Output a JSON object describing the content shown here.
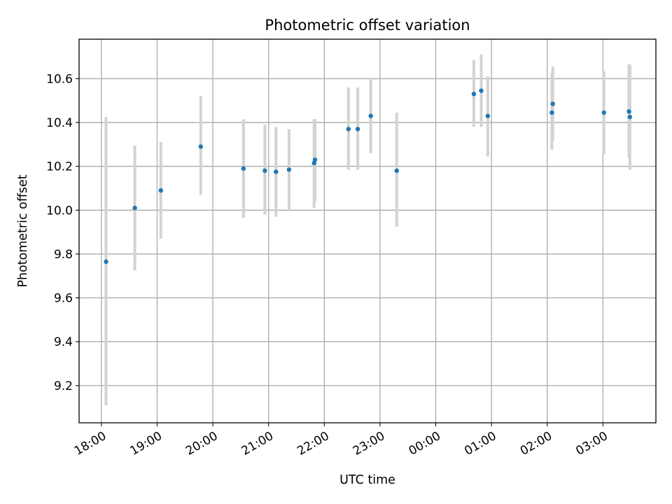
{
  "chart_data": {
    "type": "scatter",
    "title": "Photometric offset variation",
    "xlabel": "UTC time",
    "ylabel": "Photometric offset",
    "grid": true,
    "legend": "none",
    "x_start_day": "2023-01-01",
    "xlim": [
      "2023-01-01T17:36",
      "2023-01-02T03:57"
    ],
    "ylim": [
      9.03,
      10.78
    ],
    "x_ticks": [
      "2023-01-01T18:00",
      "2023-01-01T19:00",
      "2023-01-01T20:00",
      "2023-01-01T21:00",
      "2023-01-01T22:00",
      "2023-01-01T23:00",
      "2023-01-02T00:00",
      "2023-01-02T01:00",
      "2023-01-02T02:00",
      "2023-01-02T03:00"
    ],
    "x_tick_labels": [
      "18:00",
      "19:00",
      "20:00",
      "21:00",
      "22:00",
      "23:00",
      "00:00",
      "01:00",
      "02:00",
      "03:00"
    ],
    "y_ticks": [
      9.2,
      9.4,
      9.6,
      9.8,
      10.0,
      10.2,
      10.4,
      10.6
    ],
    "y_tick_labels": [
      "9.2",
      "9.4",
      "9.6",
      "9.8",
      "10.0",
      "10.2",
      "10.4",
      "10.6"
    ],
    "colors": {
      "points": "#1f77b4",
      "error_bars": "#d3d3d3",
      "grid": "#b0b0b0"
    },
    "points": [
      {
        "x": "2023-01-01T18:05",
        "y": 9.765,
        "ylow": 9.11,
        "yhigh": 10.425
      },
      {
        "x": "2023-01-01T18:36",
        "y": 10.01,
        "ylow": 9.725,
        "yhigh": 10.295
      },
      {
        "x": "2023-01-01T19:04",
        "y": 10.09,
        "ylow": 9.87,
        "yhigh": 10.31
      },
      {
        "x": "2023-01-01T19:47",
        "y": 10.29,
        "ylow": 10.07,
        "yhigh": 10.52
      },
      {
        "x": "2023-01-01T20:33",
        "y": 10.19,
        "ylow": 9.965,
        "yhigh": 10.415
      },
      {
        "x": "2023-01-01T20:56",
        "y": 10.18,
        "ylow": 9.98,
        "yhigh": 10.39
      },
      {
        "x": "2023-01-01T21:08",
        "y": 10.175,
        "ylow": 9.97,
        "yhigh": 10.38
      },
      {
        "x": "2023-01-01T21:22",
        "y": 10.185,
        "ylow": 10.0,
        "yhigh": 10.37
      },
      {
        "x": "2023-01-01T21:49",
        "y": 10.215,
        "ylow": 10.01,
        "yhigh": 10.415
      },
      {
        "x": "2023-01-01T21:50",
        "y": 10.23,
        "ylow": 10.04,
        "yhigh": 10.415
      },
      {
        "x": "2023-01-01T22:26",
        "y": 10.37,
        "ylow": 10.185,
        "yhigh": 10.56
      },
      {
        "x": "2023-01-01T22:36",
        "y": 10.37,
        "ylow": 10.185,
        "yhigh": 10.56
      },
      {
        "x": "2023-01-01T22:50",
        "y": 10.43,
        "ylow": 10.26,
        "yhigh": 10.6
      },
      {
        "x": "2023-01-01T23:18",
        "y": 10.18,
        "ylow": 9.925,
        "yhigh": 10.445
      },
      {
        "x": "2023-01-02T00:41",
        "y": 10.53,
        "ylow": 10.38,
        "yhigh": 10.685
      },
      {
        "x": "2023-01-02T00:49",
        "y": 10.545,
        "ylow": 10.38,
        "yhigh": 10.71
      },
      {
        "x": "2023-01-02T00:56",
        "y": 10.43,
        "ylow": 10.245,
        "yhigh": 10.61
      },
      {
        "x": "2023-01-02T02:05",
        "y": 10.445,
        "ylow": 10.275,
        "yhigh": 10.625
      },
      {
        "x": "2023-01-02T02:06",
        "y": 10.485,
        "ylow": 10.315,
        "yhigh": 10.655
      },
      {
        "x": "2023-01-02T03:01",
        "y": 10.445,
        "ylow": 10.255,
        "yhigh": 10.635
      },
      {
        "x": "2023-01-02T03:28",
        "y": 10.45,
        "ylow": 10.24,
        "yhigh": 10.665
      },
      {
        "x": "2023-01-02T03:29",
        "y": 10.425,
        "ylow": 10.185,
        "yhigh": 10.665
      }
    ]
  }
}
